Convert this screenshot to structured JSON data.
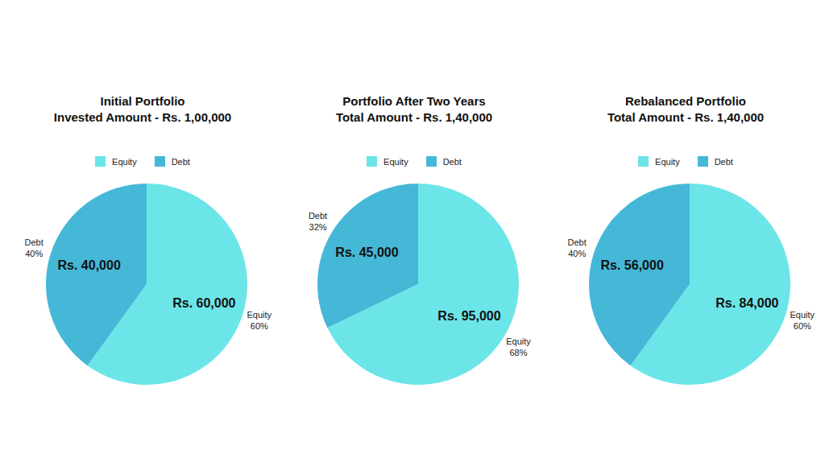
{
  "chart_data": [
    {
      "type": "pie",
      "title": "Initial Portfolio",
      "subtitle": "Invested Amount - Rs. 1,00,000",
      "categories": [
        "Equity",
        "Debt"
      ],
      "values": [
        60000,
        40000
      ],
      "value_labels": [
        "Rs. 60,000",
        "Rs. 40,000"
      ],
      "percent_labels": [
        "60%",
        "40%"
      ],
      "colors": [
        "#6ce5e8",
        "#45b8d8"
      ],
      "legend": "top",
      "data_labels": true
    },
    {
      "type": "pie",
      "title": "Portfolio After Two Years",
      "subtitle": "Total Amount - Rs. 1,40,000",
      "categories": [
        "Equity",
        "Debt"
      ],
      "values": [
        95000,
        45000
      ],
      "value_labels": [
        "Rs. 95,000",
        "Rs. 45,000"
      ],
      "percent_labels": [
        "68%",
        "32%"
      ],
      "colors": [
        "#6ce5e8",
        "#45b8d8"
      ],
      "legend": "top",
      "data_labels": true
    },
    {
      "type": "pie",
      "title": "Rebalanced Portfolio",
      "subtitle": "Total Amount - Rs. 1,40,000",
      "categories": [
        "Equity",
        "Debt"
      ],
      "values": [
        84000,
        56000
      ],
      "value_labels": [
        "Rs. 84,000",
        "Rs. 56,000"
      ],
      "percent_labels": [
        "60%",
        "40%"
      ],
      "colors": [
        "#6ce5e8",
        "#45b8d8"
      ],
      "legend": "top",
      "data_labels": true
    }
  ]
}
